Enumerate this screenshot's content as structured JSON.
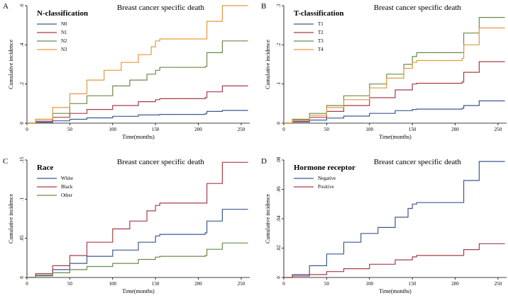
{
  "chart_data": [
    {
      "panel": "A",
      "type": "line",
      "title": "Breast cancer specific death",
      "legend_title": "N-classification",
      "legend_position": "top-left",
      "xlabel": "Time(months)",
      "ylabel": "Cumulative incidence",
      "xlim": [
        0,
        260
      ],
      "ylim": [
        0,
        0.6
      ],
      "xticks": [
        0,
        50,
        100,
        150,
        200,
        250
      ],
      "xtick_labels": [
        "0",
        "50",
        "100",
        "150",
        "200",
        "250"
      ],
      "yticks": [
        0,
        0.2,
        0.4,
        0.6
      ],
      "ytick_labels": [
        "0",
        ".2",
        ".4",
        ".6"
      ],
      "series": [
        {
          "name": "N0",
          "color": "#3c5a8f",
          "x": [
            0,
            10,
            30,
            50,
            70,
            100,
            130,
            155,
            208,
            210,
            228,
            258
          ],
          "y": [
            0,
            0.005,
            0.012,
            0.02,
            0.027,
            0.035,
            0.042,
            0.045,
            0.048,
            0.06,
            0.065,
            0.065
          ]
        },
        {
          "name": "N1",
          "color": "#a83d4a",
          "x": [
            0,
            10,
            30,
            50,
            70,
            100,
            130,
            150,
            155,
            208,
            210,
            228,
            258
          ],
          "y": [
            0,
            0.01,
            0.03,
            0.05,
            0.07,
            0.09,
            0.11,
            0.12,
            0.125,
            0.13,
            0.16,
            0.19,
            0.19
          ]
        },
        {
          "name": "N2",
          "color": "#6b8a4a",
          "x": [
            0,
            10,
            30,
            50,
            70,
            100,
            120,
            140,
            150,
            155,
            208,
            210,
            228,
            258
          ],
          "y": [
            0,
            0.02,
            0.05,
            0.1,
            0.14,
            0.19,
            0.22,
            0.25,
            0.27,
            0.285,
            0.29,
            0.36,
            0.42,
            0.42
          ]
        },
        {
          "name": "N3",
          "color": "#e39a3d",
          "x": [
            0,
            10,
            30,
            50,
            70,
            90,
            110,
            130,
            145,
            150,
            155,
            208,
            210,
            228,
            258
          ],
          "y": [
            0,
            0.02,
            0.08,
            0.15,
            0.22,
            0.27,
            0.31,
            0.35,
            0.39,
            0.42,
            0.43,
            0.43,
            0.52,
            0.6,
            0.6
          ]
        }
      ]
    },
    {
      "panel": "B",
      "type": "line",
      "title": "Breast cancer specific death",
      "legend_title": "T-classification",
      "legend_position": "top-left",
      "xlabel": "Time(months)",
      "ylabel": "Cumulative incidence",
      "xlim": [
        0,
        260
      ],
      "ylim": [
        0,
        0.3
      ],
      "xticks": [
        0,
        50,
        100,
        150,
        200,
        250
      ],
      "xtick_labels": [
        "0",
        "50",
        "100",
        "150",
        "200",
        "250"
      ],
      "yticks": [
        0,
        0.1,
        0.2,
        0.3
      ],
      "ytick_labels": [
        "0",
        ".1",
        ".2",
        ".3"
      ],
      "series": [
        {
          "name": "T1",
          "color": "#3c5a8f",
          "x": [
            0,
            10,
            30,
            50,
            70,
            100,
            130,
            150,
            155,
            208,
            210,
            228,
            258
          ],
          "y": [
            0,
            0.003,
            0.008,
            0.013,
            0.018,
            0.025,
            0.032,
            0.035,
            0.036,
            0.038,
            0.045,
            0.057,
            0.057
          ]
        },
        {
          "name": "T2",
          "color": "#a83d4a",
          "x": [
            0,
            10,
            30,
            50,
            70,
            100,
            130,
            150,
            155,
            208,
            210,
            228,
            258
          ],
          "y": [
            0,
            0.005,
            0.015,
            0.03,
            0.045,
            0.065,
            0.085,
            0.1,
            0.102,
            0.105,
            0.13,
            0.157,
            0.157
          ]
        },
        {
          "name": "T3",
          "color": "#6b8a4a",
          "x": [
            0,
            10,
            30,
            50,
            70,
            100,
            120,
            140,
            150,
            155,
            208,
            210,
            228,
            258
          ],
          "y": [
            0,
            0.01,
            0.025,
            0.045,
            0.07,
            0.1,
            0.125,
            0.15,
            0.17,
            0.18,
            0.18,
            0.23,
            0.27,
            0.27
          ]
        },
        {
          "name": "T4",
          "color": "#e39a3d",
          "x": [
            0,
            10,
            30,
            50,
            70,
            100,
            120,
            140,
            150,
            155,
            208,
            210,
            228,
            258
          ],
          "y": [
            0,
            0.008,
            0.02,
            0.04,
            0.06,
            0.09,
            0.115,
            0.14,
            0.155,
            0.16,
            0.165,
            0.2,
            0.243,
            0.243
          ]
        }
      ]
    },
    {
      "panel": "C",
      "type": "line",
      "title": "Breast cancer specific death",
      "legend_title": "Race",
      "legend_position": "top-left",
      "xlabel": "Time(months)",
      "ylabel": "Cumulative incidence",
      "xlim": [
        0,
        260
      ],
      "ylim": [
        0,
        0.15
      ],
      "xticks": [
        0,
        50,
        100,
        150,
        200,
        250
      ],
      "xtick_labels": [
        "0",
        "50",
        "100",
        "150",
        "200",
        "250"
      ],
      "yticks": [
        0,
        0.05,
        0.1,
        0.15
      ],
      "ytick_labels": [
        "0",
        ".05",
        ".1",
        ".15"
      ],
      "series": [
        {
          "name": "White",
          "color": "#3c5a8f",
          "x": [
            0,
            10,
            30,
            50,
            70,
            100,
            130,
            150,
            155,
            208,
            210,
            228,
            258
          ],
          "y": [
            0,
            0.003,
            0.01,
            0.018,
            0.027,
            0.035,
            0.045,
            0.053,
            0.055,
            0.057,
            0.072,
            0.087,
            0.087
          ]
        },
        {
          "name": "Black",
          "color": "#a83d4a",
          "x": [
            0,
            10,
            30,
            50,
            70,
            100,
            120,
            140,
            150,
            155,
            208,
            210,
            228,
            258
          ],
          "y": [
            0,
            0.005,
            0.015,
            0.028,
            0.045,
            0.062,
            0.072,
            0.085,
            0.092,
            0.095,
            0.095,
            0.12,
            0.147,
            0.147
          ]
        },
        {
          "name": "Other",
          "color": "#6b8a4a",
          "x": [
            0,
            10,
            30,
            50,
            70,
            100,
            130,
            150,
            155,
            208,
            210,
            228,
            258
          ],
          "y": [
            0,
            0.002,
            0.006,
            0.01,
            0.014,
            0.018,
            0.023,
            0.026,
            0.027,
            0.028,
            0.036,
            0.044,
            0.044
          ]
        }
      ]
    },
    {
      "panel": "D",
      "type": "line",
      "title": "Breast cancer specific death",
      "legend_title": "Hormone receptor",
      "legend_position": "top-left",
      "xlabel": "Time(months)",
      "ylabel": "Cumulative incidence",
      "xlim": [
        0,
        260
      ],
      "ylim": [
        0,
        0.08
      ],
      "xticks": [
        0,
        50,
        100,
        150,
        200,
        250
      ],
      "xtick_labels": [
        "0",
        "50",
        "100",
        "150",
        "200",
        "250"
      ],
      "yticks": [
        0,
        0.02,
        0.04,
        0.06,
        0.08
      ],
      "ytick_labels": [
        "0",
        ".02",
        ".04",
        ".06",
        ".08"
      ],
      "series": [
        {
          "name": "Negative",
          "color": "#3c5a8f",
          "x": [
            0,
            10,
            30,
            50,
            70,
            90,
            110,
            130,
            145,
            150,
            155,
            208,
            210,
            228,
            258
          ],
          "y": [
            0,
            0.002,
            0.008,
            0.016,
            0.024,
            0.03,
            0.034,
            0.041,
            0.047,
            0.05,
            0.051,
            0.051,
            0.066,
            0.079,
            0.079
          ]
        },
        {
          "name": "Positive",
          "color": "#a83d4a",
          "x": [
            0,
            10,
            30,
            50,
            70,
            100,
            130,
            150,
            155,
            208,
            210,
            228,
            258
          ],
          "y": [
            0,
            0.001,
            0.002,
            0.004,
            0.006,
            0.009,
            0.012,
            0.014,
            0.015,
            0.015,
            0.019,
            0.023,
            0.023
          ]
        }
      ]
    }
  ]
}
